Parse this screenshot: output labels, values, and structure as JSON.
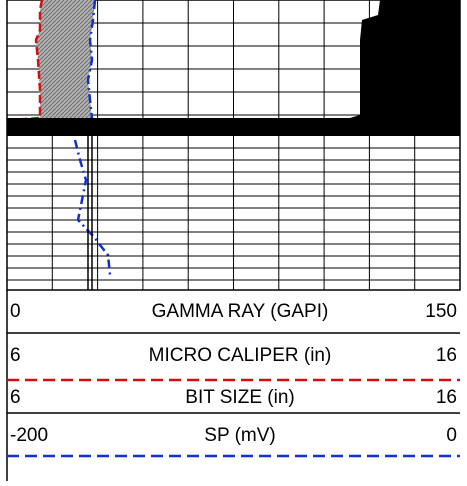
{
  "tracks": [
    {
      "left": 0,
      "name": "GAMMA RAY (GAPI)",
      "right": 150
    },
    {
      "left": 6,
      "name": "MICRO CALIPER (in)",
      "right": 16
    },
    {
      "left": 6,
      "name": "BIT SIZE (in)",
      "right": 16
    },
    {
      "left": -200,
      "name": "SP (mV)",
      "right": 0
    }
  ]
}
